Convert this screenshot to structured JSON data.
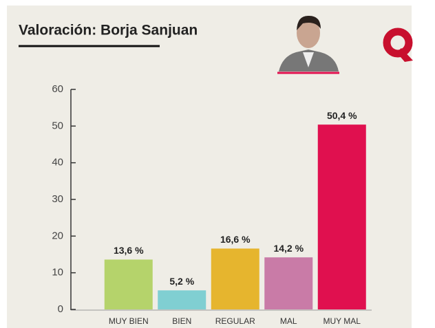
{
  "chart_data": {
    "type": "bar",
    "title": "Valoración: Borja Sanjuan",
    "categories": [
      "MUY BIEN",
      "BIEN",
      "REGULAR",
      "MAL",
      "MUY MAL"
    ],
    "values": [
      13.6,
      5.2,
      16.6,
      14.2,
      50.4
    ],
    "value_labels": [
      "13,6 %",
      "5,2 %",
      "16,6 %",
      "14,2 %",
      "50,4 %"
    ],
    "colors": [
      "#b5d36b",
      "#80cfd2",
      "#e6b52e",
      "#c97ba7",
      "#e0104f"
    ],
    "ylim": [
      0,
      60
    ],
    "yticks": [
      0,
      10,
      20,
      30,
      40,
      50,
      60
    ],
    "grid": false
  }
}
